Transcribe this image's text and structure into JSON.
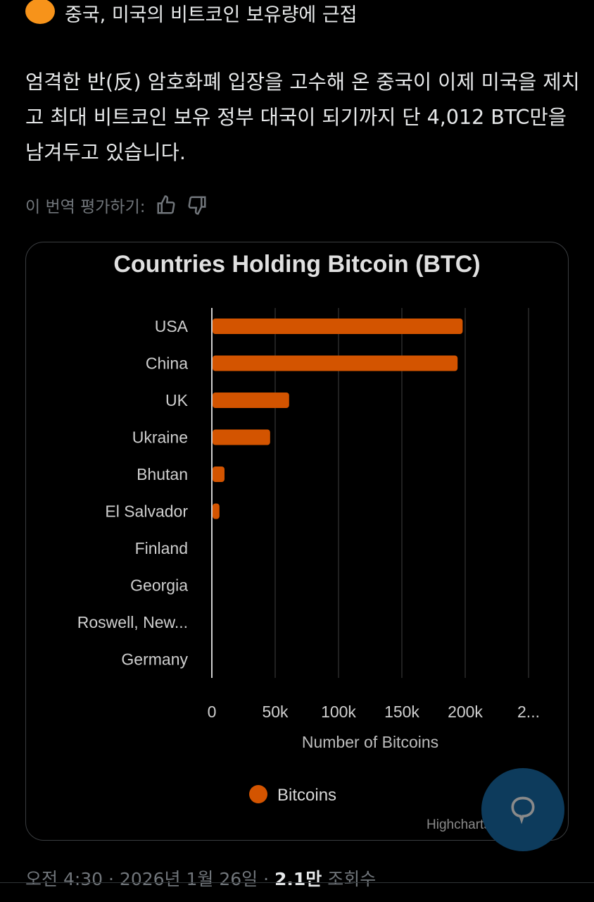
{
  "post": {
    "headline": "중국, 미국의 비트코인 보유량에 근접",
    "headline_icon": "orange-circle-emoji",
    "body": "엄격한 반(反) 암호화폐 입장을 고수해 온 중국이 이제 미국을 제치고 최대 비트코인 보유 정부 대국이 되기까지 단 4,012 BTC만을 남겨두고 있습니다.",
    "rate_translation": "이 번역 평가하기:",
    "timestamp": "오전 4:30 · 2026년 1월 26일 · ",
    "views_count": "2.1만",
    "views_label": " 조회수"
  },
  "chart_data": {
    "type": "bar",
    "orientation": "horizontal",
    "title": "Countries Holding Bitcoin (BTC)",
    "categories": [
      "USA",
      "China",
      "UK",
      "Ukraine",
      "Bhutan",
      "El Salvador",
      "Finland",
      "Georgia",
      "Roswell, New...",
      "Germany"
    ],
    "series": [
      {
        "name": "Bitcoins",
        "values": [
          198000,
          194000,
          61000,
          46000,
          10000,
          6000,
          0,
          0,
          0,
          0
        ]
      }
    ],
    "xlabel": "Number of Bitcoins",
    "xticks": [
      "0",
      "50k",
      "100k",
      "150k",
      "200k",
      "2..."
    ],
    "xlim": [
      0,
      250000
    ],
    "grid": true,
    "legend": "bottom-center",
    "bar_color": "#d35400",
    "credit": "Highcharts.com"
  }
}
